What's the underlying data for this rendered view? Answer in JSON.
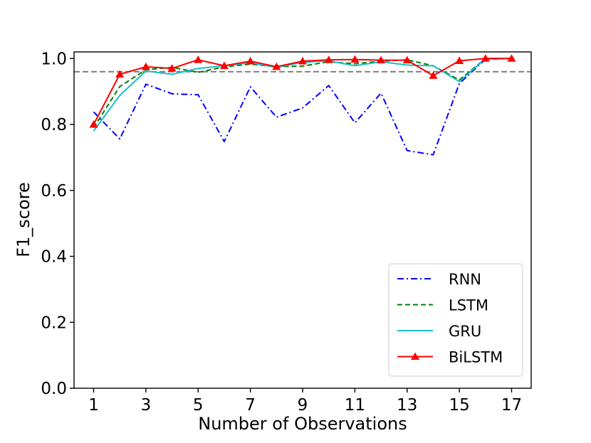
{
  "chart_data": {
    "type": "line",
    "title": "",
    "xlabel": "Number of Observations",
    "ylabel": "F1_score",
    "xlim": [
      0.25,
      17.75
    ],
    "ylim": [
      0.0,
      1.02
    ],
    "xticks": [
      1,
      3,
      5,
      7,
      9,
      11,
      13,
      15,
      17
    ],
    "xtick_labels": [
      "1",
      "3",
      "5",
      "7",
      "9",
      "11",
      "13",
      "15",
      "17"
    ],
    "yticks": [
      0.0,
      0.2,
      0.4,
      0.6,
      0.8,
      1.0
    ],
    "ytick_labels": [
      "0.0",
      "0.2",
      "0.4",
      "0.6",
      "0.8",
      "1.0"
    ],
    "grid": false,
    "legend_position": "lower-right",
    "reference_line": {
      "y": 0.96,
      "style": "dashed",
      "color": "#7f7f7f"
    },
    "x": [
      1,
      2,
      3,
      4,
      5,
      6,
      7,
      8,
      9,
      10,
      11,
      12,
      13,
      14,
      15,
      16,
      17
    ],
    "series": [
      {
        "name": "RNN",
        "color": "#0000ff",
        "style": "dashdot",
        "marker": "none",
        "values": [
          0.838,
          0.756,
          0.922,
          0.893,
          0.89,
          0.748,
          0.914,
          0.822,
          0.85,
          0.918,
          0.805,
          0.895,
          0.721,
          0.708,
          0.924,
          0.998,
          1.0
        ]
      },
      {
        "name": "LSTM",
        "color": "#008000",
        "style": "dashed",
        "marker": "none",
        "values": [
          0.79,
          0.915,
          0.966,
          0.973,
          0.958,
          0.975,
          0.983,
          0.975,
          0.977,
          0.99,
          0.984,
          0.992,
          0.996,
          0.978,
          0.935,
          1.0,
          1.0
        ]
      },
      {
        "name": "GRU",
        "color": "#17becf",
        "style": "solid",
        "marker": "none",
        "values": [
          0.78,
          0.888,
          0.962,
          0.952,
          0.97,
          0.978,
          0.987,
          0.973,
          0.988,
          0.993,
          0.978,
          0.99,
          0.98,
          0.978,
          0.93,
          1.0,
          1.0
        ]
      },
      {
        "name": "BiLSTM",
        "color": "#ff0000",
        "style": "solid",
        "marker": "triangle",
        "values": [
          0.8,
          0.952,
          0.975,
          0.97,
          0.996,
          0.978,
          0.992,
          0.975,
          0.992,
          0.996,
          0.997,
          0.995,
          0.995,
          0.948,
          0.993,
          1.0,
          1.0
        ]
      }
    ]
  }
}
